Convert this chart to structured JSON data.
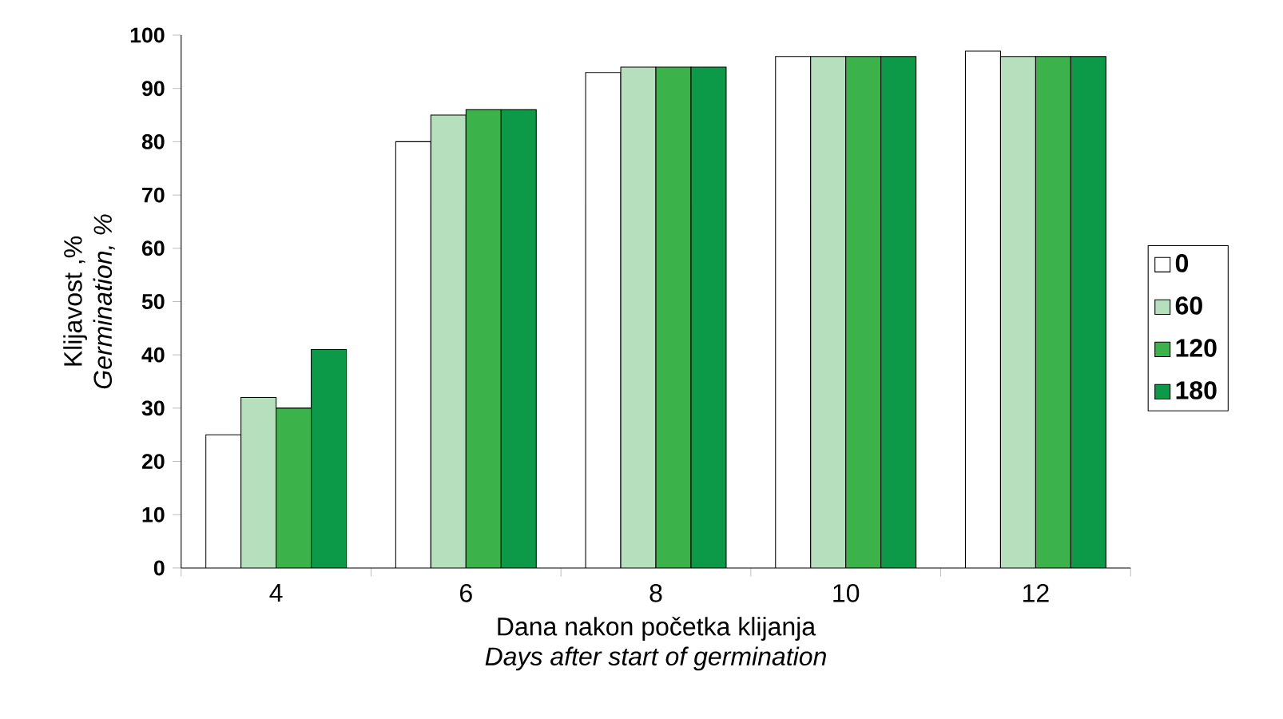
{
  "chart_data": {
    "type": "bar",
    "xlabel": "Dana nakon početka klijanja",
    "ylabel": "Klijavost ,%",
    "annotations": [
      "Days after start of germination",
      "Germination, %"
    ],
    "categories": [
      "4",
      "6",
      "8",
      "10",
      "12"
    ],
    "series": [
      {
        "name": "0",
        "color": "#ffffff",
        "values": [
          25,
          80,
          93,
          96,
          97
        ]
      },
      {
        "name": "60",
        "color": "#b5dfbd",
        "values": [
          32,
          85,
          94,
          96,
          96
        ]
      },
      {
        "name": "120",
        "color": "#3bb34a",
        "values": [
          30,
          86,
          94,
          96,
          96
        ]
      },
      {
        "name": "180",
        "color": "#0c9a48",
        "values": [
          41,
          86,
          94,
          96,
          96
        ]
      }
    ],
    "ylim": [
      0,
      100
    ],
    "yticks": [
      0,
      10,
      20,
      30,
      40,
      50,
      60,
      70,
      80,
      90,
      100
    ],
    "legend": "right",
    "grid": false
  }
}
